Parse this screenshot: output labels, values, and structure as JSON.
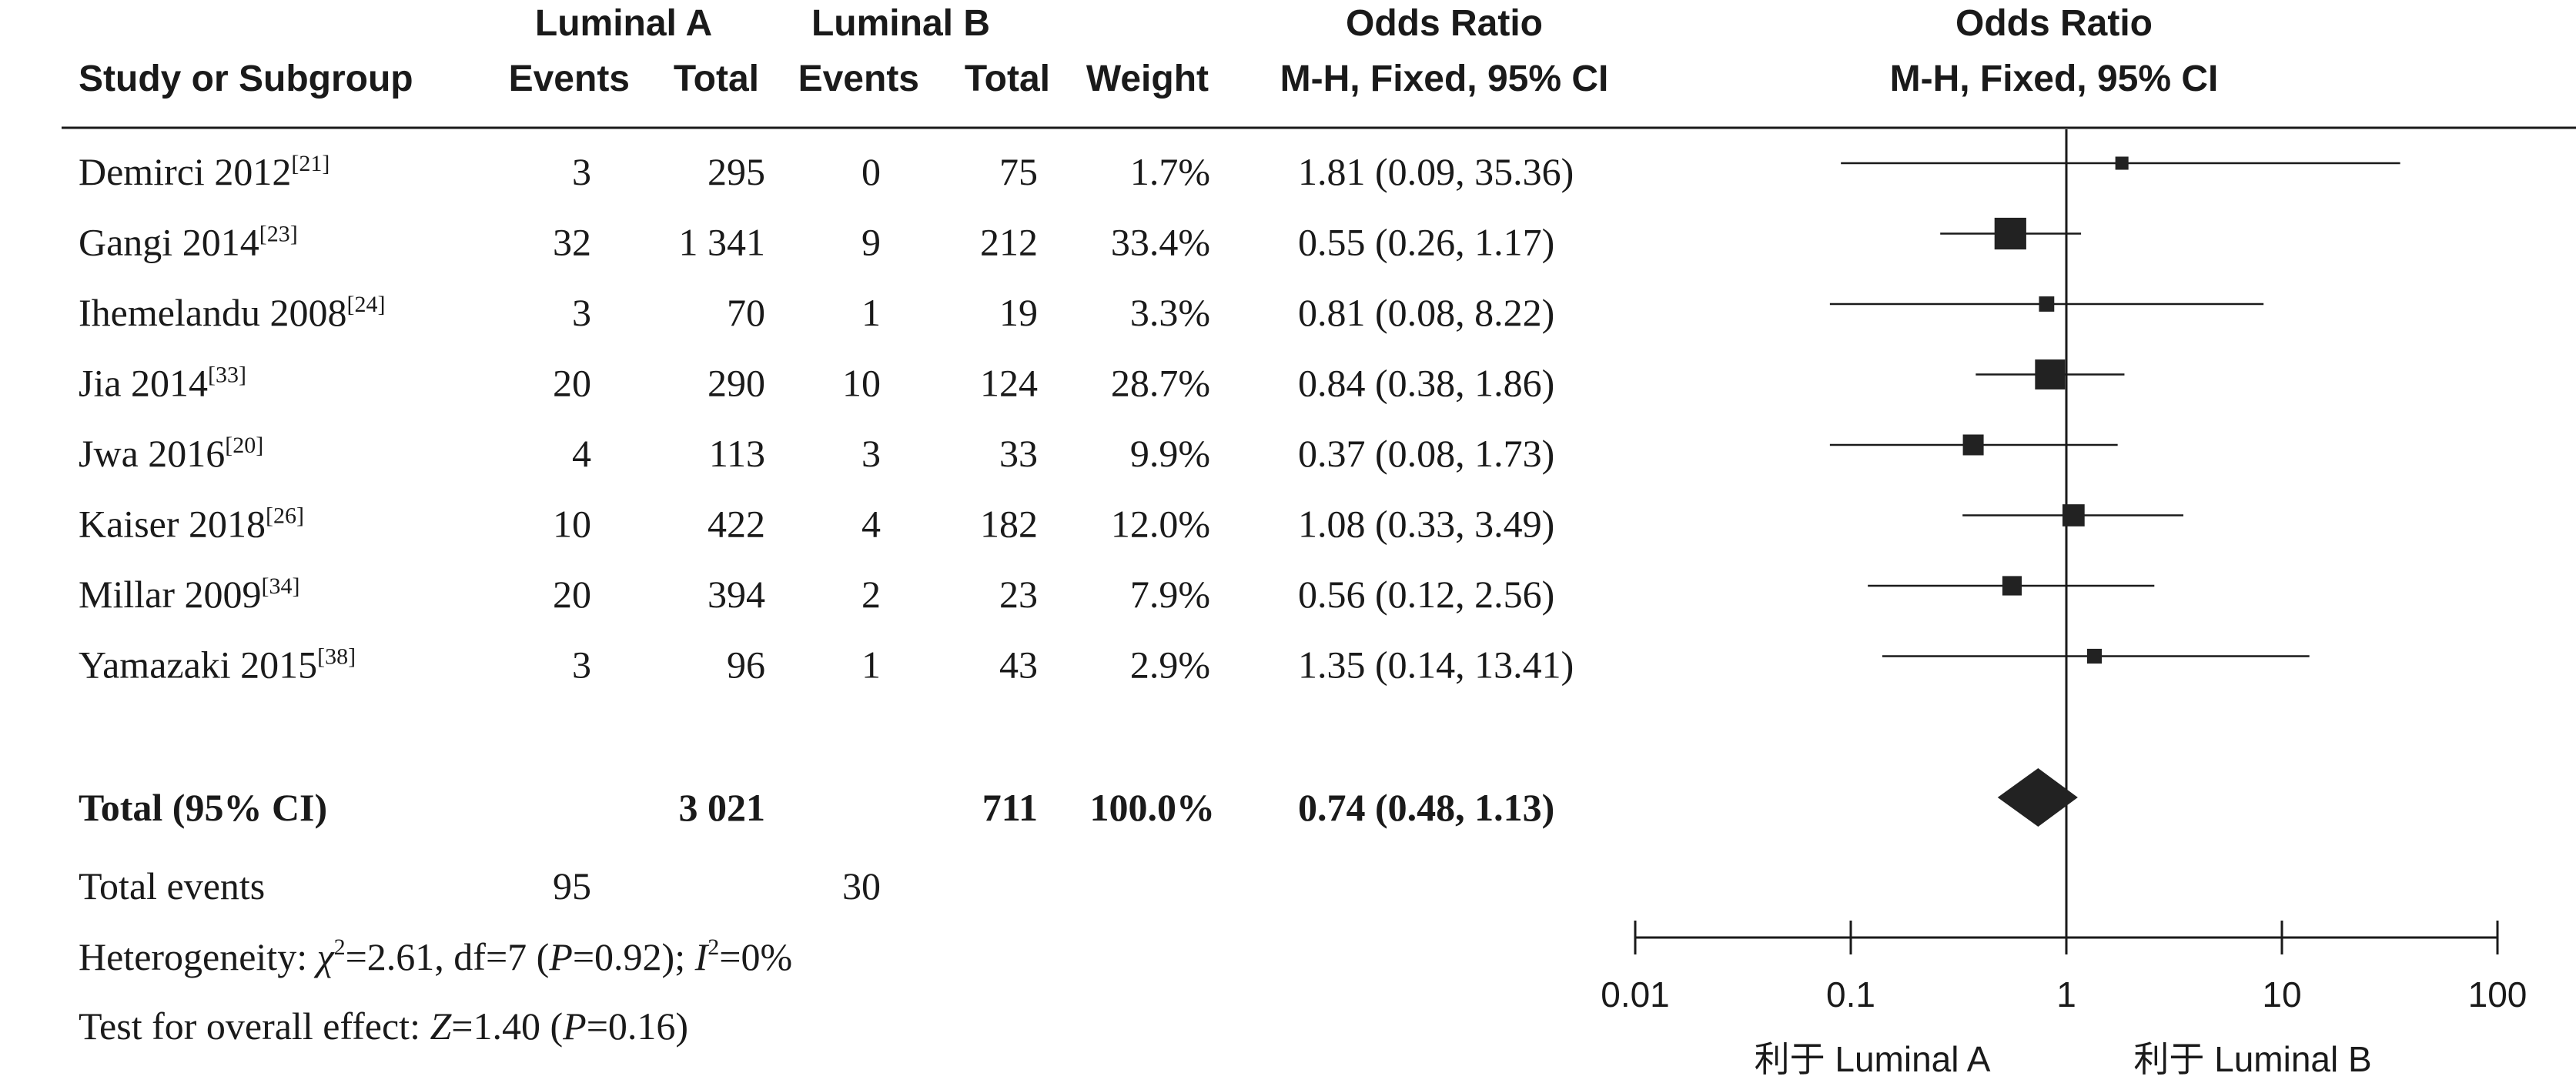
{
  "chart_data": {
    "type": "forest",
    "headers": {
      "study": "Study or Subgroup",
      "group_a": "Luminal A",
      "group_b": "Luminal B",
      "events": "Events",
      "total": "Total",
      "weight": "Weight",
      "or_title": "Odds Ratio",
      "or_method": "M-H, Fixed, 95% CI",
      "plot_title": "Odds Ratio",
      "plot_method": "M-H, Fixed, 95% CI"
    },
    "studies": [
      {
        "name": "Demirci 2012",
        "ref": "[21]",
        "a_events": "3",
        "a_total": "295",
        "b_events": "0",
        "b_total": "75",
        "weight": "1.7%",
        "ci_text": "1.81 (0.09, 35.36)",
        "or": 1.81,
        "lo": 0.09,
        "hi": 35.36,
        "w": 1.7
      },
      {
        "name": "Gangi 2014",
        "ref": "[23]",
        "a_events": "32",
        "a_total": "1 341",
        "b_events": "9",
        "b_total": "212",
        "weight": "33.4%",
        "ci_text": "0.55 (0.26, 1.17)",
        "or": 0.55,
        "lo": 0.26,
        "hi": 1.17,
        "w": 33.4
      },
      {
        "name": "Ihemelandu 2008",
        "ref": "[24]",
        "a_events": "3",
        "a_total": "70",
        "b_events": "1",
        "b_total": "19",
        "weight": "3.3%",
        "ci_text": "0.81 (0.08, 8.22)",
        "or": 0.81,
        "lo": 0.08,
        "hi": 8.22,
        "w": 3.3
      },
      {
        "name": "Jia 2014",
        "ref": "[33]",
        "a_events": "20",
        "a_total": "290",
        "b_events": "10",
        "b_total": "124",
        "weight": "28.7%",
        "ci_text": "0.84 (0.38, 1.86)",
        "or": 0.84,
        "lo": 0.38,
        "hi": 1.86,
        "w": 28.7
      },
      {
        "name": "Jwa 2016",
        "ref": "[20]",
        "a_events": "4",
        "a_total": "113",
        "b_events": "3",
        "b_total": "33",
        "weight": "9.9%",
        "ci_text": "0.37 (0.08, 1.73)",
        "or": 0.37,
        "lo": 0.08,
        "hi": 1.73,
        "w": 9.9
      },
      {
        "name": "Kaiser 2018",
        "ref": "[26]",
        "a_events": "10",
        "a_total": "422",
        "b_events": "4",
        "b_total": "182",
        "weight": "12.0%",
        "ci_text": "1.08 (0.33, 3.49)",
        "or": 1.08,
        "lo": 0.33,
        "hi": 3.49,
        "w": 12.0
      },
      {
        "name": "Millar 2009",
        "ref": "[34]",
        "a_events": "20",
        "a_total": "394",
        "b_events": "2",
        "b_total": "23",
        "weight": "7.9%",
        "ci_text": "0.56 (0.12, 2.56)",
        "or": 0.56,
        "lo": 0.12,
        "hi": 2.56,
        "w": 7.9
      },
      {
        "name": "Yamazaki 2015",
        "ref": "[38]",
        "a_events": "3",
        "a_total": "96",
        "b_events": "1",
        "b_total": "43",
        "weight": "2.9%",
        "ci_text": "1.35 (0.14, 13.41)",
        "or": 1.35,
        "lo": 0.14,
        "hi": 13.41,
        "w": 2.9
      }
    ],
    "total": {
      "label": "Total (95% CI)",
      "a_total": "3 021",
      "b_total": "711",
      "weight": "100.0%",
      "ci_text": "0.74 (0.48, 1.13)",
      "or": 0.74,
      "lo": 0.48,
      "hi": 1.13
    },
    "total_events": {
      "label": "Total events",
      "a": "95",
      "b": "30"
    },
    "heterogeneity": {
      "prefix": "Heterogeneity: ",
      "chi_symbol": "χ",
      "chi_sup": "2",
      "chi_rest": "=2.61, df=7 (",
      "p_symbol": "P",
      "p_rest": "=0.92); ",
      "i_symbol": "I",
      "i_sup": "2",
      "i_rest": "=0%"
    },
    "overall_effect": {
      "prefix": "Test for overall effect: ",
      "z_symbol": "Z",
      "z_rest": "=1.40 (",
      "p_symbol": "P",
      "p_rest": "=0.16)"
    },
    "x_axis": {
      "scale": "log",
      "ticks": [
        0.01,
        0.1,
        1,
        10,
        100
      ],
      "tick_labels": [
        "0.01",
        "0.1",
        "1",
        "10",
        "100"
      ],
      "range": [
        0.01,
        100
      ]
    },
    "favours_left": "利于 Luminal A",
    "favours_right": "利于 Luminal B",
    "colors": {
      "ink": "#1a1a1a",
      "marker": "#222222"
    }
  }
}
